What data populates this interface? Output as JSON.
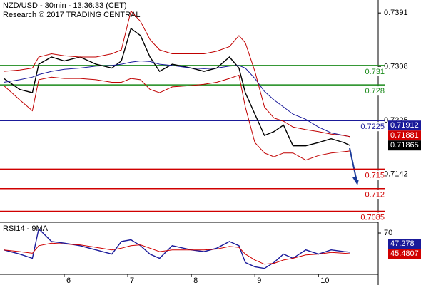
{
  "chart_data": [
    {
      "type": "line",
      "title": "NZD/USD - 30min - 13:36:33 (CET)",
      "subtitle": "Research © 2017 TRADING CENTRAL",
      "x": [
        5.05,
        5.3,
        5.5,
        5.6,
        5.8,
        6.0,
        6.25,
        6.5,
        6.75,
        6.9,
        7.05,
        7.2,
        7.35,
        7.5,
        7.7,
        8.0,
        8.2,
        8.4,
        8.6,
        8.75,
        8.85,
        9.0,
        9.15,
        9.3,
        9.45,
        9.6,
        9.8,
        10.0,
        10.2,
        10.4,
        10.5
      ],
      "xlim": [
        4.99,
        10.94
      ],
      "ylim": [
        0.7068,
        0.7411
      ],
      "yticks": [
        0.7391,
        0.7308,
        0.7225,
        0.7142
      ],
      "series": [
        {
          "color": "#000000",
          "values": [
            0.729,
            0.7273,
            0.7268,
            0.7312,
            0.7323,
            0.7317,
            0.7323,
            0.7312,
            0.7306,
            0.7317,
            0.7367,
            0.7356,
            0.7323,
            0.7301,
            0.7312,
            0.7306,
            0.7301,
            0.7306,
            0.7323,
            0.7306,
            0.7268,
            0.7235,
            0.7202,
            0.7208,
            0.7218,
            0.7186,
            0.7186,
            0.7191,
            0.7197,
            0.7191,
            0.71865
          ]
        },
        {
          "color": "#1a1a9a",
          "values": [
            0.7284,
            0.7288,
            0.7292,
            0.7296,
            0.7301,
            0.7304,
            0.7306,
            0.7309,
            0.731,
            0.7312,
            0.7315,
            0.7317,
            0.7316,
            0.7312,
            0.731,
            0.7306,
            0.7305,
            0.7306,
            0.7309,
            0.731,
            0.7306,
            0.729,
            0.727,
            0.7257,
            0.7246,
            0.7235,
            0.7227,
            0.7215,
            0.7206,
            0.7202,
            0.72
          ]
        },
        {
          "color": "#c00000",
          "values": [
            0.7301,
            0.7303,
            0.7306,
            0.7323,
            0.7328,
            0.7325,
            0.7323,
            0.7323,
            0.7328,
            0.7334,
            0.7394,
            0.7378,
            0.735,
            0.7334,
            0.7328,
            0.7328,
            0.7328,
            0.7332,
            0.7339,
            0.7356,
            0.7345,
            0.7301,
            0.7246,
            0.7229,
            0.7224,
            0.7215,
            0.7211,
            0.7208,
            0.7204,
            0.7202,
            0.72
          ]
        },
        {
          "color": "#c00000",
          "values": [
            0.7279,
            0.7257,
            0.724,
            0.7288,
            0.7292,
            0.729,
            0.729,
            0.7288,
            0.7284,
            0.7284,
            0.729,
            0.7288,
            0.7273,
            0.7268,
            0.7277,
            0.7279,
            0.7281,
            0.7284,
            0.729,
            0.7295,
            0.7246,
            0.7191,
            0.7175,
            0.7169,
            0.7175,
            0.7175,
            0.7164,
            0.7171,
            0.7175,
            0.7177,
            0.7178
          ]
        }
      ],
      "levels": [
        {
          "value": 0.731,
          "color": "#1a8a1a"
        },
        {
          "value": 0.728,
          "color": "#1a8a1a"
        },
        {
          "value": 0.7225,
          "color": "#1a1a9a"
        },
        {
          "value": 0.715,
          "color": "#d00000"
        },
        {
          "value": 0.712,
          "color": "#d00000"
        },
        {
          "value": 0.7085,
          "color": "#d00000"
        }
      ],
      "price_labels": [
        {
          "value": 0.71912,
          "color": "#1a1a9a"
        },
        {
          "value": 0.71881,
          "color": "#d00000"
        },
        {
          "value": 0.71865,
          "color": "#000000"
        }
      ]
    },
    {
      "type": "line",
      "title": "RSI14 - 9MA",
      "x": [
        5.05,
        5.3,
        5.5,
        5.6,
        5.8,
        6.0,
        6.25,
        6.5,
        6.75,
        6.9,
        7.05,
        7.2,
        7.35,
        7.5,
        7.7,
        8.0,
        8.2,
        8.4,
        8.6,
        8.75,
        8.85,
        9.0,
        9.15,
        9.3,
        9.45,
        9.6,
        9.8,
        10.0,
        10.2,
        10.4,
        10.5
      ],
      "xlim": [
        4.99,
        10.94
      ],
      "xticks": [
        6,
        7,
        8,
        9,
        10
      ],
      "ylim": [
        21,
        81
      ],
      "yticks": [
        70
      ],
      "series": [
        {
          "color": "#1a1a9a",
          "values": [
            50,
            45,
            40,
            75,
            60,
            58,
            55,
            50,
            45,
            60,
            62,
            55,
            45,
            40,
            55,
            50,
            48,
            52,
            60,
            55,
            35,
            30,
            28,
            35,
            45,
            40,
            50,
            45,
            50,
            48,
            47.278
          ]
        },
        {
          "color": "#d00000",
          "values": [
            50,
            48,
            46,
            55,
            58,
            57,
            56,
            53,
            50,
            52,
            55,
            56,
            52,
            48,
            50,
            50,
            50,
            51,
            54,
            53,
            45,
            38,
            33,
            34,
            38,
            40,
            44,
            45,
            47,
            46,
            45.4807
          ]
        }
      ],
      "price_labels": [
        {
          "value": 47.278,
          "color": "#1a1a9a"
        },
        {
          "value": 45.4807,
          "color": "#d00000"
        }
      ]
    }
  ]
}
